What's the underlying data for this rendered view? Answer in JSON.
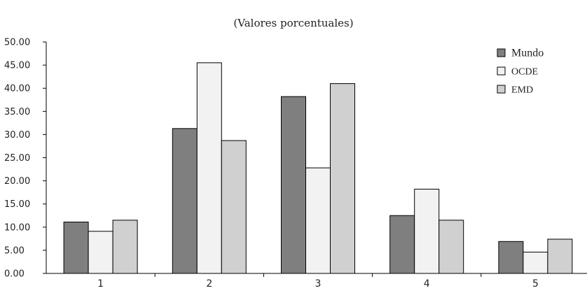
{
  "chart_data": {
    "type": "bar",
    "title": "(Valores porcentuales)",
    "categories": [
      "1",
      "2",
      "3",
      "4",
      "5"
    ],
    "series": [
      {
        "name": "Mundo",
        "values": [
          11.1,
          31.3,
          38.2,
          12.5,
          6.9
        ],
        "color": "#7f7f7f"
      },
      {
        "name": "OCDE",
        "values": [
          9.1,
          45.5,
          22.8,
          18.2,
          4.6
        ],
        "color": "#f2f2f2"
      },
      {
        "name": "EMD",
        "values": [
          11.5,
          28.7,
          41.0,
          11.5,
          7.4
        ],
        "color": "#d0d0d0"
      }
    ],
    "ylim": [
      0,
      50
    ],
    "yticks": [
      "0.00",
      "5.00",
      "10.00",
      "15.00",
      "20.00",
      "25.00",
      "30.00",
      "35.00",
      "40.00",
      "45.00",
      "50.00"
    ],
    "legend": "top-right",
    "grid": false
  }
}
